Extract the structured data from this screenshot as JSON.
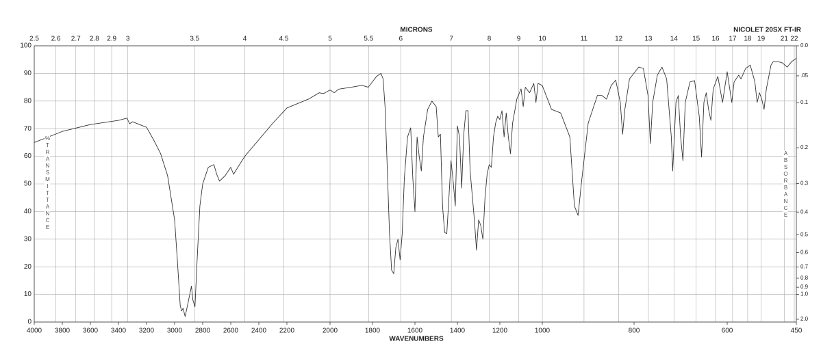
{
  "chart_data": {
    "type": "line",
    "title": "NICOLET 20SX FT-IR",
    "xlabel": "WAVENUMBERS",
    "x2label": "MICRONS",
    "ylabel": "%TRANSMITTANCE",
    "y2label": "ABSORBANCE",
    "xlim": [
      4000,
      450
    ],
    "xticks": [
      4000,
      3800,
      3600,
      3400,
      3200,
      3000,
      2800,
      2600,
      2400,
      2200,
      2000,
      1800,
      1600,
      1400,
      1200,
      1000,
      800,
      600,
      450
    ],
    "x2ticks": [
      2.5,
      2.6,
      2.7,
      2.8,
      2.9,
      3,
      3.5,
      4,
      4.5,
      5,
      5.5,
      6,
      7,
      8,
      9,
      10,
      11,
      12,
      13,
      14,
      15,
      16,
      17,
      18,
      19,
      21,
      22
    ],
    "ylim": [
      0,
      100
    ],
    "yticks": [
      0,
      10,
      20,
      30,
      40,
      50,
      60,
      70,
      80,
      90,
      100
    ],
    "y2ticks": [
      {
        "value": 0,
        "label": "0.0"
      },
      {
        "value": 0.05,
        "label": ".05"
      },
      {
        "value": 0.1,
        "label": "0.1"
      },
      0.2,
      0.3,
      0.4,
      0.5,
      0.6,
      0.7,
      0.8,
      0.9,
      {
        "value": 1,
        "label": "1.0"
      },
      {
        "value": 2,
        "label": "2.0"
      }
    ],
    "grid": true,
    "series": [
      {
        "color": "#333333",
        "x": [
          4000,
          3800,
          3600,
          3400,
          3340,
          3320,
          3300,
          3200,
          3150,
          3100,
          3050,
          3000,
          2980,
          2960,
          2950,
          2940,
          2925,
          2900,
          2880,
          2870,
          2855,
          2840,
          2820,
          2800,
          2760,
          2720,
          2700,
          2680,
          2640,
          2600,
          2580,
          2550,
          2500,
          2400,
          2300,
          2200,
          2100,
          2050,
          2030,
          2000,
          1980,
          1960,
          1900,
          1850,
          1820,
          1800,
          1780,
          1760,
          1750,
          1740,
          1730,
          1720,
          1710,
          1700,
          1690,
          1680,
          1670,
          1660,
          1650,
          1635,
          1620,
          1610,
          1600,
          1590,
          1580,
          1570,
          1560,
          1540,
          1520,
          1500,
          1490,
          1480,
          1470,
          1460,
          1450,
          1440,
          1430,
          1420,
          1410,
          1400,
          1390,
          1380,
          1370,
          1360,
          1350,
          1340,
          1320,
          1310,
          1300,
          1290,
          1280,
          1270,
          1260,
          1250,
          1240,
          1230,
          1220,
          1210,
          1200,
          1190,
          1180,
          1170,
          1160,
          1150,
          1140,
          1120,
          1100,
          1090,
          1080,
          1060,
          1040,
          1030,
          1020,
          1000,
          980,
          960,
          940,
          930,
          922,
          915,
          900,
          880,
          870,
          860,
          850,
          840,
          830,
          825,
          820,
          810,
          790,
          780,
          770,
          765,
          760,
          750,
          740,
          730,
          720,
          717,
          710,
          705,
          700,
          695,
          690,
          680,
          670,
          660,
          655,
          650,
          645,
          640,
          635,
          630,
          620,
          610,
          600,
          590,
          585,
          575,
          570,
          560,
          550,
          540,
          535,
          530,
          525,
          520,
          515,
          505,
          500,
          490,
          480,
          470,
          460,
          450
        ],
        "values": [
          65,
          69,
          71.5,
          73,
          73.8,
          71.8,
          72.5,
          70.5,
          66,
          61,
          53,
          37,
          22,
          6,
          4,
          5,
          2,
          8,
          13,
          8,
          5.5,
          22,
          42,
          50,
          56,
          57,
          53.5,
          51,
          53,
          56,
          53.5,
          56,
          60,
          66,
          72,
          77.5,
          80.7,
          83,
          82.7,
          84,
          83,
          84.3,
          85,
          85.7,
          85,
          87,
          89,
          90,
          88,
          77,
          54.7,
          32.4,
          18.8,
          17.5,
          27,
          30,
          22.5,
          32,
          52,
          67,
          70.3,
          52,
          40,
          67,
          60,
          54.7,
          67,
          77,
          80,
          78,
          67,
          68,
          42,
          32.4,
          32,
          45,
          58.4,
          51,
          42,
          71,
          67,
          48.5,
          68,
          76.5,
          76.5,
          54.7,
          37,
          26,
          37,
          35,
          30,
          45,
          53.5,
          57,
          56,
          67,
          72,
          74.5,
          73.3,
          76.5,
          67,
          75.7,
          67,
          61,
          72,
          80.7,
          84.4,
          78,
          85,
          83,
          86.4,
          79.5,
          86.4,
          85.6,
          77,
          75.7,
          67,
          42,
          38.6,
          50,
          72,
          82,
          82,
          80.7,
          85.6,
          87.6,
          79.5,
          68,
          77,
          88,
          92.3,
          91.8,
          82,
          64.6,
          79.5,
          89.4,
          92.3,
          88,
          67,
          54.7,
          79.5,
          82,
          67,
          58.4,
          79.5,
          86.9,
          87.4,
          74.5,
          59.7,
          79.5,
          83,
          77,
          73,
          84.4,
          88.9,
          79.5,
          90.6,
          79.5,
          86.9,
          89.4,
          88,
          91.8,
          93,
          87,
          79.5,
          83,
          80.7,
          77,
          84.4,
          93,
          94.3,
          94.3,
          93.8,
          92.3,
          94.3,
          95.5
        ]
      }
    ]
  }
}
